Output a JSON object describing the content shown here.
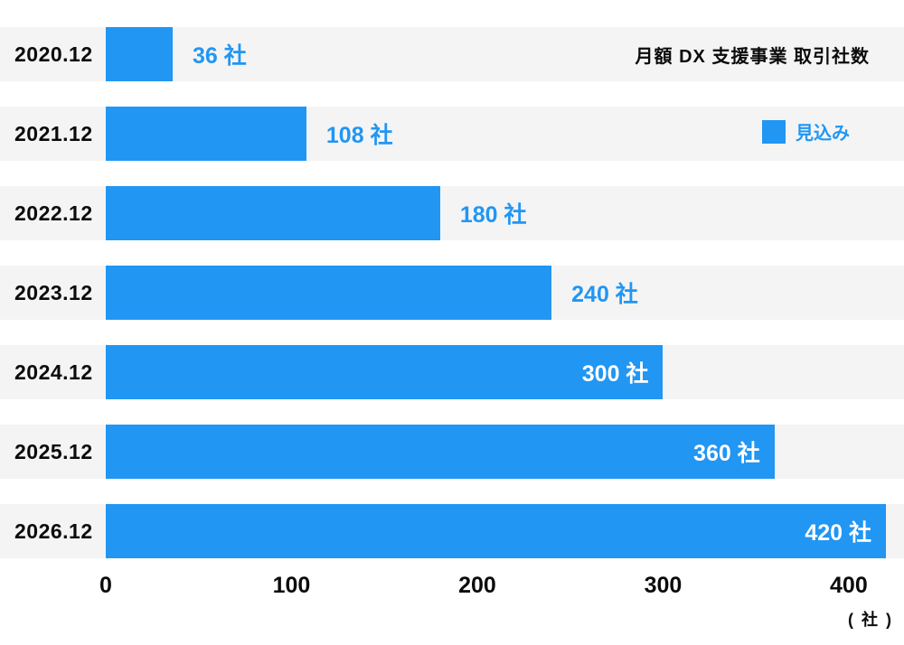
{
  "chart_data": {
    "type": "bar",
    "orientation": "horizontal",
    "title": "月額 DX 支援事業 取引社数",
    "legend": [
      {
        "label": "見込み",
        "color": "#2196F3"
      }
    ],
    "categories": [
      "2020.12",
      "2021.12",
      "2022.12",
      "2023.12",
      "2024.12",
      "2025.12",
      "2026.12"
    ],
    "values": [
      36,
      108,
      180,
      240,
      300,
      360,
      420
    ],
    "value_labels": [
      "36 社",
      "108 社",
      "180 社",
      "240 社",
      "300 社",
      "360 社",
      "420 社"
    ],
    "label_positions": [
      "outside",
      "outside",
      "outside",
      "outside",
      "inside",
      "inside",
      "inside"
    ],
    "bar_color": "#2196F3",
    "row_band_color": "#f4f4f4",
    "xticks": [
      "0",
      "100",
      "200",
      "300",
      "400"
    ],
    "xtick_values": [
      0,
      100,
      200,
      300,
      400
    ],
    "xlim": [
      0,
      420
    ],
    "unit": "( 社 )",
    "xlabel": "",
    "ylabel": "",
    "grid": false,
    "legend_position": "top-right"
  }
}
